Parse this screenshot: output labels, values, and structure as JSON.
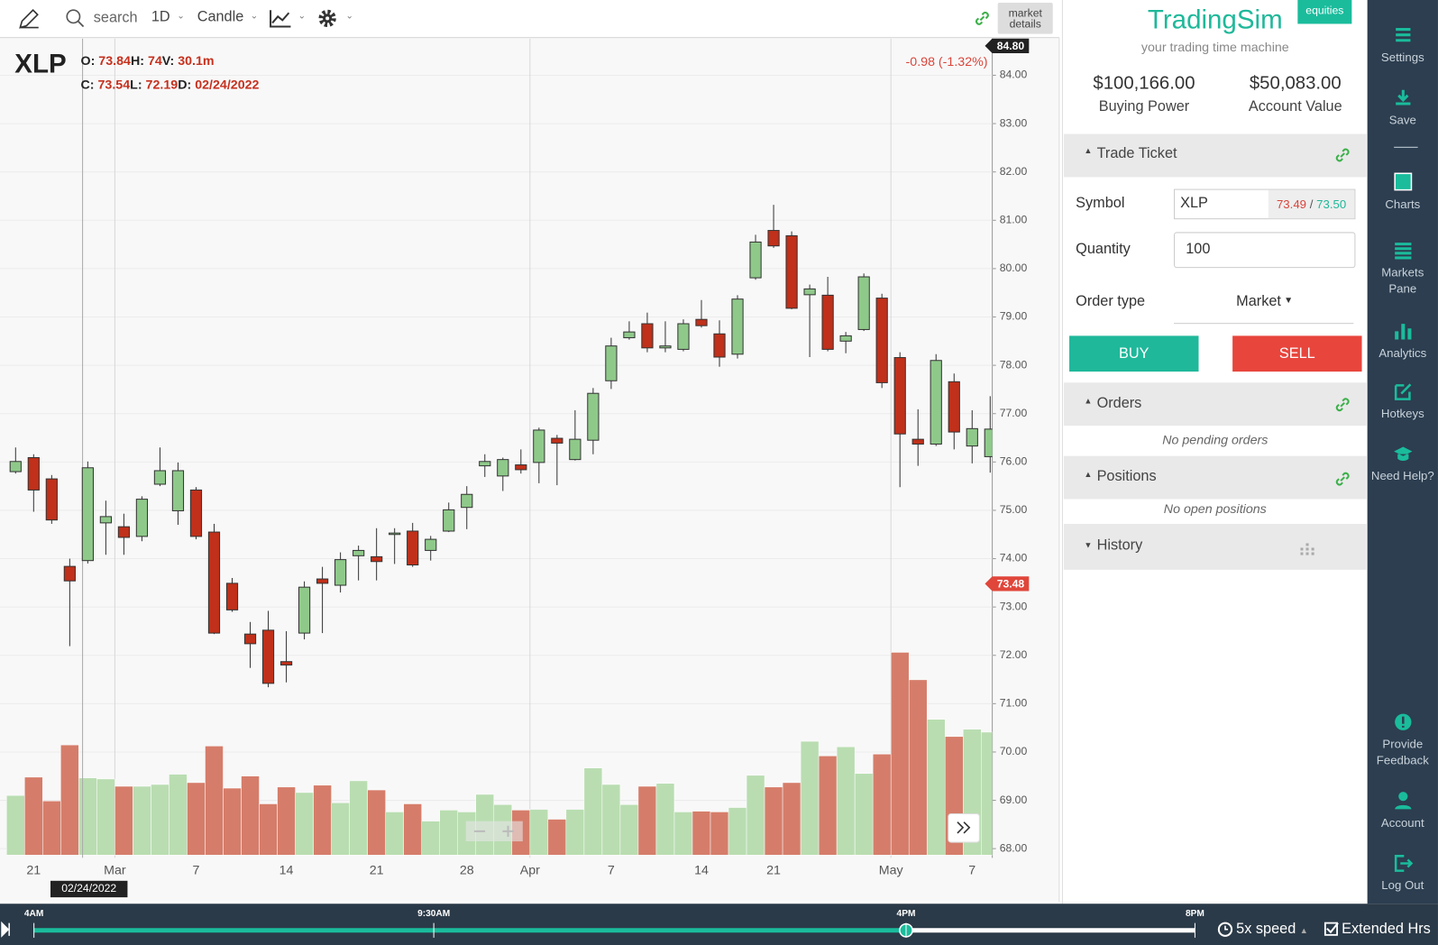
{
  "toolbar": {
    "search": "search",
    "interval": "1D",
    "chart_style": "Candle",
    "market_details": "market details"
  },
  "chart_data": {
    "type": "candlestick",
    "symbol": "XLP",
    "legend_labels": {
      "open": "O:",
      "high": "H:",
      "low": "L:",
      "close": "C:",
      "volume": "V:",
      "date": "D:"
    },
    "hover": {
      "volume": "30.1m",
      "date": "02/24/2022"
    },
    "change": "-0.98 (-1.32%)",
    "price_markers": [
      {
        "value": 84.8,
        "label": "84.80"
      },
      {
        "value": 73.48,
        "label": "73.48"
      }
    ],
    "categories": [
      null,
      "21",
      null,
      null,
      null,
      null,
      "Mar",
      null,
      null,
      null,
      "7",
      null,
      null,
      null,
      null,
      "14",
      null,
      null,
      null,
      null,
      "21",
      null,
      null,
      null,
      null,
      "28",
      null,
      null,
      null,
      "Apr",
      null,
      null,
      null,
      "7",
      null,
      null,
      null,
      null,
      "14",
      null,
      null,
      null,
      "21",
      null,
      null,
      null,
      null,
      null,
      null,
      "May",
      null,
      null,
      null,
      "7",
      null
    ],
    "open": [
      75.8,
      76.09,
      75.65,
      73.84,
      73.96,
      74.74,
      74.66,
      74.46,
      75.54,
      74.99,
      75.42,
      74.55,
      73.49,
      72.44,
      72.52,
      71.87,
      72.46,
      73.58,
      73.45,
      74.06,
      74.04,
      74.5,
      74.57,
      74.17,
      74.57,
      75.06,
      75.92,
      75.71,
      75.94,
      75.99,
      76.49,
      76.05,
      76.45,
      77.68,
      78.57,
      78.86,
      78.36,
      78.33,
      78.95,
      78.65,
      78.23,
      79.81,
      80.79,
      80.68,
      79.46,
      79.45,
      78.5,
      78.74,
      79.39,
      78.16,
      76.47,
      76.37,
      77.66,
      76.33,
      76.11
    ],
    "high": [
      76.3,
      76.16,
      75.73,
      74.0,
      76.01,
      75.2,
      74.93,
      75.29,
      76.3,
      75.99,
      75.48,
      74.72,
      73.6,
      72.69,
      72.92,
      72.5,
      73.53,
      73.83,
      74.13,
      74.27,
      74.63,
      74.63,
      74.74,
      74.47,
      75.16,
      75.5,
      76.16,
      76.09,
      76.26,
      76.71,
      76.56,
      77.07,
      77.53,
      78.57,
      78.91,
      79.09,
      78.91,
      78.95,
      79.35,
      78.93,
      79.45,
      80.7,
      81.32,
      80.77,
      79.67,
      79.83,
      78.69,
      79.9,
      79.48,
      78.27,
      77.09,
      78.23,
      77.83,
      77.07,
      77.36
    ],
    "low": [
      75.76,
      74.97,
      74.72,
      72.19,
      73.9,
      74.08,
      74.08,
      74.36,
      75.5,
      74.7,
      74.4,
      72.44,
      72.9,
      71.74,
      71.34,
      71.44,
      72.33,
      72.46,
      73.3,
      73.55,
      73.55,
      73.89,
      73.83,
      73.96,
      74.55,
      74.61,
      75.69,
      75.4,
      75.76,
      75.56,
      75.52,
      76.03,
      76.16,
      77.51,
      78.53,
      78.27,
      78.27,
      78.29,
      78.78,
      77.97,
      78.14,
      79.77,
      80.43,
      79.16,
      78.17,
      78.29,
      78.25,
      78.71,
      77.53,
      75.48,
      75.92,
      76.33,
      76.26,
      75.97,
      75.78
    ],
    "close": [
      76.01,
      75.42,
      74.8,
      73.54,
      75.88,
      74.87,
      74.44,
      75.23,
      75.82,
      75.82,
      74.46,
      72.46,
      72.94,
      72.24,
      71.42,
      71.8,
      73.41,
      73.49,
      73.98,
      74.17,
      73.94,
      74.53,
      73.87,
      74.4,
      75.01,
      75.33,
      76.01,
      76.05,
      75.84,
      76.66,
      76.39,
      76.47,
      77.42,
      78.4,
      78.69,
      78.36,
      78.4,
      78.86,
      78.82,
      78.17,
      79.37,
      80.55,
      80.47,
      79.18,
      79.58,
      78.33,
      78.61,
      79.83,
      77.64,
      76.58,
      76.37,
      78.1,
      76.62,
      76.69,
      76.68
    ],
    "volume": [
      16.3,
      21.3,
      14.8,
      30.1,
      21.1,
      20.8,
      18.8,
      18.8,
      19.3,
      22.1,
      19.8,
      29.8,
      18.3,
      21.6,
      14.0,
      18.6,
      17.1,
      19.1,
      14.3,
      20.3,
      17.8,
      11.8,
      14.0,
      9.3,
      12.3,
      11.8,
      16.6,
      13.8,
      12.3,
      12.5,
      9.8,
      12.5,
      23.8,
      19.3,
      13.8,
      18.8,
      19.6,
      11.8,
      12.0,
      11.8,
      13.0,
      21.8,
      18.6,
      19.8,
      31.1,
      27.1,
      29.6,
      22.3,
      27.6,
      55.4,
      47.9,
      37.1,
      32.4,
      34.4,
      33.6
    ],
    "ylim": [
      67.81,
      84.76
    ],
    "yticks": [
      {
        "value": 68,
        "label": "68.00"
      },
      {
        "value": 69,
        "label": "69.00"
      },
      {
        "value": 70,
        "label": "70.00"
      },
      {
        "value": 71,
        "label": "71.00"
      },
      {
        "value": 72,
        "label": "72.00"
      },
      {
        "value": 73,
        "label": "73.00"
      },
      {
        "value": 74,
        "label": "74.00"
      },
      {
        "value": 75,
        "label": "75.00"
      },
      {
        "value": 76,
        "label": "76.00"
      },
      {
        "value": 77,
        "label": "77.00"
      },
      {
        "value": 78,
        "label": "78.00"
      },
      {
        "value": 79,
        "label": "79.00"
      },
      {
        "value": 80,
        "label": "80.00"
      },
      {
        "value": 81,
        "label": "81.00"
      },
      {
        "value": 82,
        "label": "82.00"
      },
      {
        "value": 83,
        "label": "83.00"
      },
      {
        "value": 84,
        "label": "84.00"
      }
    ],
    "up_color": "#8fc98a",
    "down_color": "#c0301a",
    "volume_up_color": "#b9ddb1",
    "volume_down_color": "#d57d6a",
    "grid": true
  },
  "panel": {
    "brand": "TradingSim",
    "tagline": "your trading time machine",
    "badge": "equities",
    "buying_power": {
      "value": "$100,166.00",
      "label": "Buying Power"
    },
    "account_value": {
      "value": "$50,083.00",
      "label": "Account Value"
    },
    "trade_ticket": {
      "title": "Trade Ticket",
      "symbol_label": "Symbol",
      "symbol": "XLP",
      "bid": "73.49",
      "separator": "/",
      "ask": "73.50",
      "quantity_label": "Quantity",
      "quantity": "100",
      "order_type_label": "Order type",
      "order_type": "Market",
      "buy": "BUY",
      "sell": "SELL"
    },
    "orders": {
      "title": "Orders",
      "empty": "No pending orders"
    },
    "positions": {
      "title": "Positions",
      "empty": "No open positions"
    },
    "history": {
      "title": "History"
    }
  },
  "sidebar": [
    "Settings",
    "Save",
    "Charts",
    "Markets Pane",
    "Analytics",
    "Hotkeys",
    "Need Help?",
    "Provide Feedback",
    "Account",
    "Log Out"
  ],
  "timeline": {
    "marks": [
      "4AM",
      "9:30AM",
      "4PM",
      "8PM"
    ],
    "speed": "5x speed",
    "extended": "Extended Hrs"
  }
}
